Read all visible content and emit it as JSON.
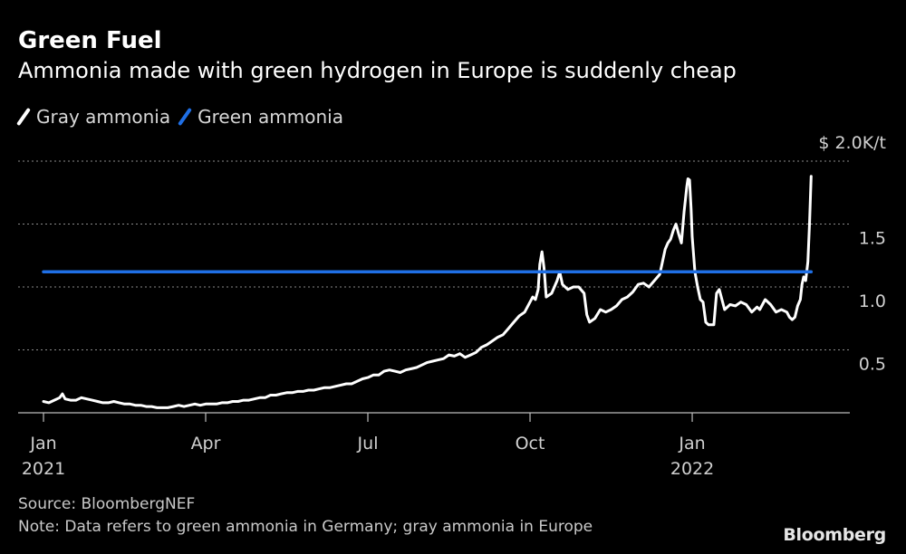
{
  "header": {
    "title": "Green Fuel",
    "subtitle": "Ammonia made with green hydrogen in Europe is suddenly cheap"
  },
  "legend": [
    {
      "label": "Gray ammonia",
      "color": "#ffffff"
    },
    {
      "label": "Green ammonia",
      "color": "#1f6fe5"
    }
  ],
  "footer": {
    "source": "Source: BloombergNEF",
    "note": "Note: Data refers to green ammonia in Germany; gray ammonia in Europe",
    "brand": "Bloomberg"
  },
  "chart_data": {
    "type": "line",
    "title": "Green Fuel",
    "subtitle": "Ammonia made with green hydrogen in Europe is suddenly cheap",
    "xlabel": "",
    "ylabel": "$K/t",
    "ylim": [
      0,
      2.0
    ],
    "grid": true,
    "legend_position": "top-left",
    "x_unit": "months since Jan 1, 2021",
    "x_range": [
      0,
      14.2
    ],
    "x_ticks": [
      {
        "x": 0,
        "label": "Jan",
        "year": "2021"
      },
      {
        "x": 3,
        "label": "Apr",
        "year": ""
      },
      {
        "x": 6,
        "label": "Jul",
        "year": ""
      },
      {
        "x": 9,
        "label": "Oct",
        "year": ""
      },
      {
        "x": 12,
        "label": "Jan",
        "year": "2022"
      }
    ],
    "y_ticks": [
      {
        "value": 2.0,
        "label": "$ 2.0K/t"
      },
      {
        "value": 1.5,
        "label": "1.5"
      },
      {
        "value": 1.0,
        "label": "1.0"
      },
      {
        "value": 0.5,
        "label": "0.5"
      }
    ],
    "series": [
      {
        "name": "Gray ammonia",
        "color": "#ffffff",
        "points": [
          [
            0.0,
            0.09
          ],
          [
            0.1,
            0.08
          ],
          [
            0.2,
            0.1
          ],
          [
            0.3,
            0.12
          ],
          [
            0.35,
            0.15
          ],
          [
            0.4,
            0.11
          ],
          [
            0.5,
            0.1
          ],
          [
            0.6,
            0.1
          ],
          [
            0.7,
            0.12
          ],
          [
            0.8,
            0.11
          ],
          [
            0.9,
            0.1
          ],
          [
            1.0,
            0.09
          ],
          [
            1.1,
            0.08
          ],
          [
            1.2,
            0.08
          ],
          [
            1.3,
            0.09
          ],
          [
            1.4,
            0.08
          ],
          [
            1.5,
            0.07
          ],
          [
            1.6,
            0.07
          ],
          [
            1.7,
            0.06
          ],
          [
            1.8,
            0.06
          ],
          [
            1.9,
            0.05
          ],
          [
            2.0,
            0.05
          ],
          [
            2.1,
            0.04
          ],
          [
            2.2,
            0.04
          ],
          [
            2.3,
            0.04
          ],
          [
            2.4,
            0.05
          ],
          [
            2.5,
            0.06
          ],
          [
            2.6,
            0.05
          ],
          [
            2.7,
            0.06
          ],
          [
            2.8,
            0.07
          ],
          [
            2.9,
            0.06
          ],
          [
            3.0,
            0.07
          ],
          [
            3.1,
            0.07
          ],
          [
            3.2,
            0.07
          ],
          [
            3.3,
            0.08
          ],
          [
            3.4,
            0.08
          ],
          [
            3.5,
            0.09
          ],
          [
            3.6,
            0.09
          ],
          [
            3.7,
            0.1
          ],
          [
            3.8,
            0.1
          ],
          [
            3.9,
            0.11
          ],
          [
            4.0,
            0.12
          ],
          [
            4.1,
            0.12
          ],
          [
            4.2,
            0.14
          ],
          [
            4.3,
            0.14
          ],
          [
            4.4,
            0.15
          ],
          [
            4.5,
            0.16
          ],
          [
            4.6,
            0.16
          ],
          [
            4.7,
            0.17
          ],
          [
            4.8,
            0.17
          ],
          [
            4.9,
            0.18
          ],
          [
            5.0,
            0.18
          ],
          [
            5.1,
            0.19
          ],
          [
            5.2,
            0.2
          ],
          [
            5.3,
            0.2
          ],
          [
            5.4,
            0.21
          ],
          [
            5.5,
            0.22
          ],
          [
            5.6,
            0.23
          ],
          [
            5.7,
            0.23
          ],
          [
            5.8,
            0.25
          ],
          [
            5.9,
            0.27
          ],
          [
            6.0,
            0.28
          ],
          [
            6.1,
            0.3
          ],
          [
            6.2,
            0.3
          ],
          [
            6.3,
            0.33
          ],
          [
            6.4,
            0.34
          ],
          [
            6.5,
            0.33
          ],
          [
            6.6,
            0.32
          ],
          [
            6.7,
            0.34
          ],
          [
            6.8,
            0.35
          ],
          [
            6.9,
            0.36
          ],
          [
            7.0,
            0.38
          ],
          [
            7.1,
            0.4
          ],
          [
            7.2,
            0.41
          ],
          [
            7.3,
            0.42
          ],
          [
            7.4,
            0.43
          ],
          [
            7.5,
            0.46
          ],
          [
            7.6,
            0.45
          ],
          [
            7.7,
            0.47
          ],
          [
            7.8,
            0.44
          ],
          [
            7.9,
            0.46
          ],
          [
            8.0,
            0.48
          ],
          [
            8.1,
            0.52
          ],
          [
            8.2,
            0.54
          ],
          [
            8.3,
            0.57
          ],
          [
            8.4,
            0.6
          ],
          [
            8.5,
            0.62
          ],
          [
            8.6,
            0.67
          ],
          [
            8.7,
            0.72
          ],
          [
            8.8,
            0.77
          ],
          [
            8.9,
            0.8
          ],
          [
            9.0,
            0.88
          ],
          [
            9.05,
            0.92
          ],
          [
            9.1,
            0.9
          ],
          [
            9.15,
            0.98
          ],
          [
            9.18,
            1.18
          ],
          [
            9.22,
            1.28
          ],
          [
            9.26,
            1.15
          ],
          [
            9.3,
            0.92
          ],
          [
            9.4,
            0.95
          ],
          [
            9.5,
            1.05
          ],
          [
            9.55,
            1.12
          ],
          [
            9.6,
            1.02
          ],
          [
            9.7,
            0.98
          ],
          [
            9.8,
            1.0
          ],
          [
            9.9,
            1.0
          ],
          [
            10.0,
            0.95
          ],
          [
            10.05,
            0.78
          ],
          [
            10.1,
            0.72
          ],
          [
            10.2,
            0.75
          ],
          [
            10.3,
            0.82
          ],
          [
            10.4,
            0.8
          ],
          [
            10.5,
            0.82
          ],
          [
            10.6,
            0.85
          ],
          [
            10.7,
            0.9
          ],
          [
            10.8,
            0.92
          ],
          [
            10.9,
            0.96
          ],
          [
            11.0,
            1.02
          ],
          [
            11.1,
            1.03
          ],
          [
            11.2,
            1.0
          ],
          [
            11.3,
            1.05
          ],
          [
            11.4,
            1.1
          ],
          [
            11.5,
            1.3
          ],
          [
            11.55,
            1.35
          ],
          [
            11.6,
            1.38
          ],
          [
            11.65,
            1.45
          ],
          [
            11.7,
            1.5
          ],
          [
            11.75,
            1.42
          ],
          [
            11.8,
            1.35
          ],
          [
            11.85,
            1.6
          ],
          [
            11.9,
            1.8
          ],
          [
            11.92,
            1.86
          ],
          [
            11.95,
            1.85
          ],
          [
            11.98,
            1.62
          ],
          [
            12.0,
            1.4
          ],
          [
            12.05,
            1.12
          ],
          [
            12.1,
            1.0
          ],
          [
            12.15,
            0.9
          ],
          [
            12.2,
            0.88
          ],
          [
            12.25,
            0.72
          ],
          [
            12.3,
            0.7
          ],
          [
            12.4,
            0.7
          ],
          [
            12.45,
            0.95
          ],
          [
            12.5,
            0.98
          ],
          [
            12.6,
            0.82
          ],
          [
            12.7,
            0.86
          ],
          [
            12.8,
            0.85
          ],
          [
            12.9,
            0.88
          ],
          [
            13.0,
            0.86
          ],
          [
            13.1,
            0.8
          ],
          [
            13.2,
            0.84
          ],
          [
            13.25,
            0.82
          ],
          [
            13.35,
            0.9
          ],
          [
            13.45,
            0.86
          ],
          [
            13.55,
            0.8
          ],
          [
            13.65,
            0.82
          ],
          [
            13.75,
            0.8
          ],
          [
            13.8,
            0.76
          ],
          [
            13.85,
            0.74
          ],
          [
            13.9,
            0.76
          ],
          [
            13.95,
            0.85
          ],
          [
            14.0,
            0.9
          ],
          [
            14.03,
            1.02
          ],
          [
            14.06,
            1.08
          ],
          [
            14.1,
            1.05
          ],
          [
            14.14,
            1.2
          ],
          [
            14.17,
            1.5
          ],
          [
            14.2,
            1.88
          ]
        ]
      },
      {
        "name": "Green ammonia",
        "color": "#1f6fe5",
        "points": [
          [
            0.0,
            1.12
          ],
          [
            14.2,
            1.12
          ]
        ]
      }
    ]
  }
}
